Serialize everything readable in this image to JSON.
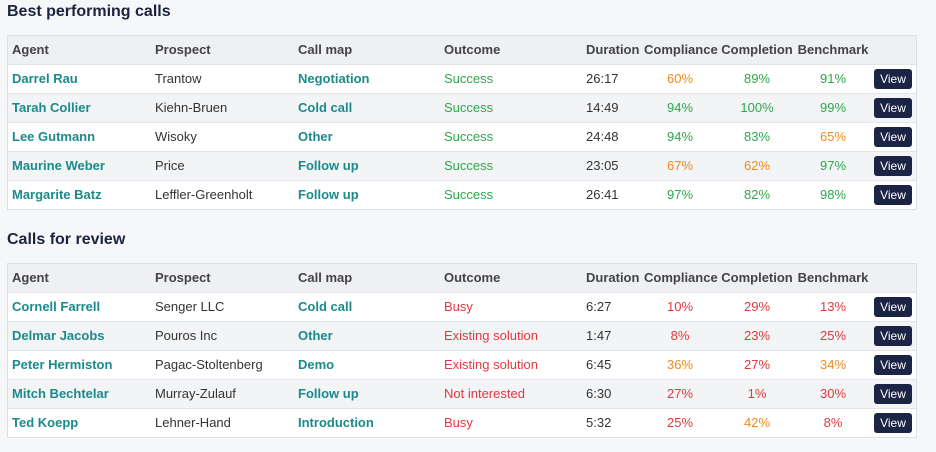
{
  "sections": [
    {
      "title": "Best performing calls",
      "headers": [
        "Agent",
        "Prospect",
        "Call map",
        "Outcome",
        "Duration",
        "Compliance",
        "Completion",
        "Benchmark"
      ],
      "rows": [
        [
          "Darrel Rau",
          "Trantow",
          "Negotiation",
          "Success",
          "26:17",
          "60%",
          "89%",
          "91%",
          "View"
        ],
        [
          "Tarah Collier",
          "Kiehn-Bruen",
          "Cold call",
          "Success",
          "14:49",
          "94%",
          "100%",
          "99%",
          "View"
        ],
        [
          "Lee Gutmann",
          "Wisoky",
          "Other",
          "Success",
          "24:48",
          "94%",
          "83%",
          "65%",
          "View"
        ],
        [
          "Maurine Weber",
          "Price",
          "Follow up",
          "Success",
          "23:05",
          "67%",
          "62%",
          "97%",
          "View"
        ],
        [
          "Margarite Batz",
          "Leffler-Greenholt",
          "Follow up",
          "Success",
          "26:41",
          "97%",
          "82%",
          "98%",
          "View"
        ]
      ]
    },
    {
      "title": "Calls for review",
      "headers": [
        "Agent",
        "Prospect",
        "Call map",
        "Outcome",
        "Duration",
        "Compliance",
        "Completion",
        "Benchmark"
      ],
      "rows": [
        [
          "Cornell Farrell",
          "Senger LLC",
          "Cold call",
          "Busy",
          "6:27",
          "10%",
          "29%",
          "13%",
          "View"
        ],
        [
          "Delmar Jacobs",
          "Pouros Inc",
          "Other",
          "Existing solution",
          "1:47",
          "8%",
          "23%",
          "25%",
          "View"
        ],
        [
          "Peter Hermiston",
          "Pagac-Stoltenberg",
          "Demo",
          "Existing solution",
          "6:45",
          "36%",
          "27%",
          "34%",
          "View"
        ],
        [
          "Mitch Bechtelar",
          "Murray-Zulauf",
          "Follow up",
          "Not interested",
          "6:30",
          "27%",
          "1%",
          "30%",
          "View"
        ],
        [
          "Ted Koepp",
          "Lehner-Hand",
          "Introduction",
          "Busy",
          "5:32",
          "25%",
          "42%",
          "8%",
          "View"
        ]
      ]
    }
  ]
}
